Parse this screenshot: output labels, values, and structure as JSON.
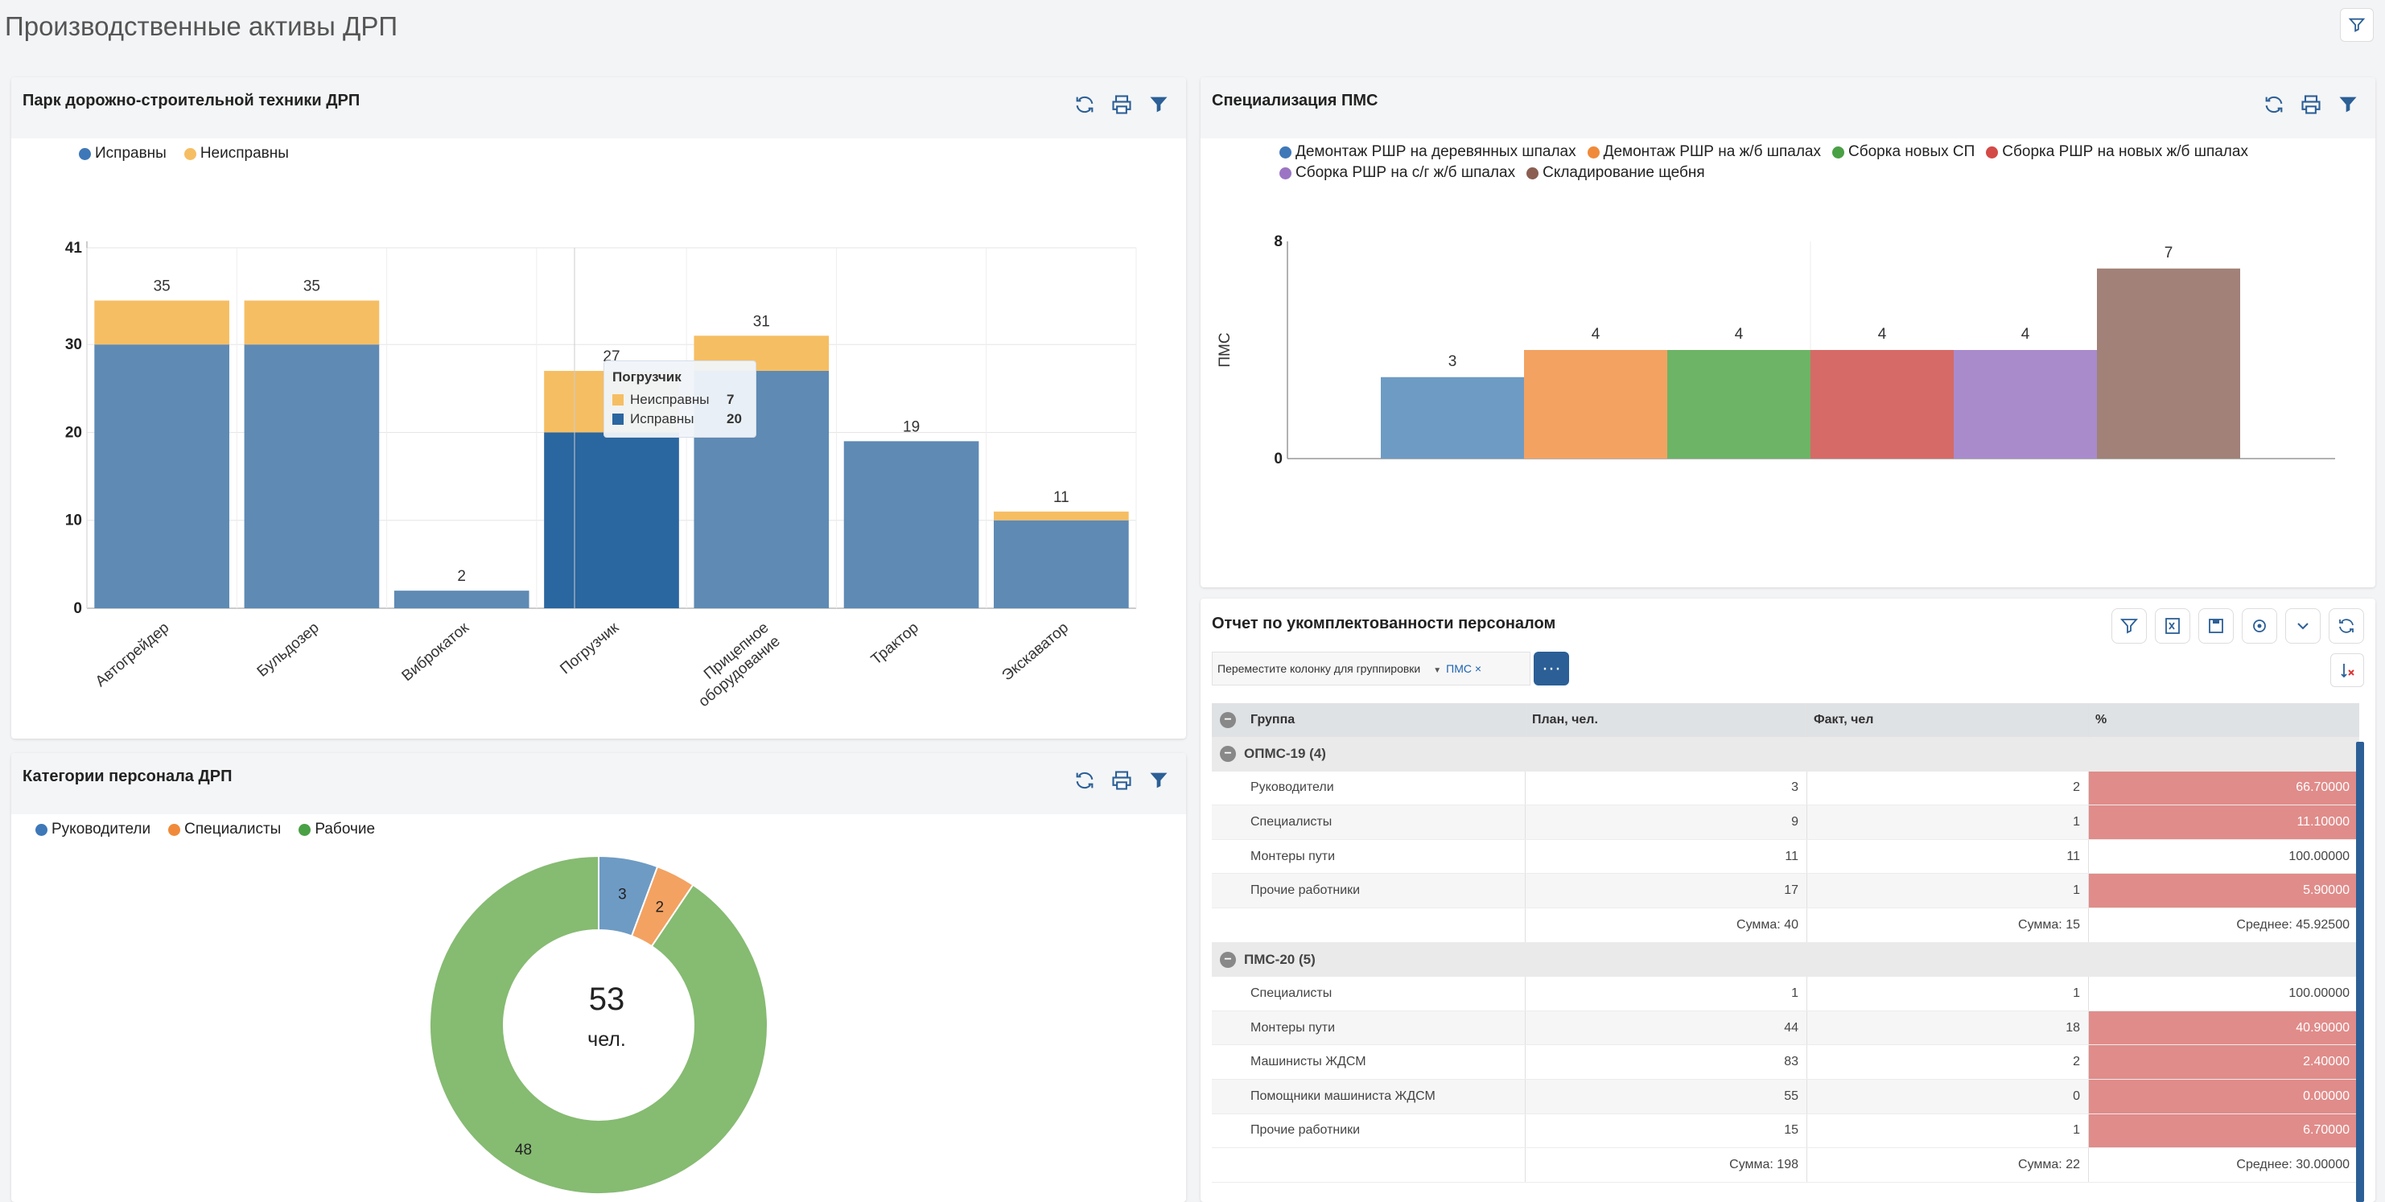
{
  "page": {
    "title": "Производственные активы ДРП"
  },
  "colors": {
    "blue": "#5e8ab4",
    "orange": "#f6be63",
    "dark_blue": "#2a66a0",
    "pink": "#e08c8a",
    "panel_header": "#f4f5f6"
  },
  "fleet": {
    "title": "Парк дорожно-строительной техники ДРП",
    "tools": [
      "refresh-icon",
      "print-icon",
      "filter-icon"
    ],
    "tooltip": {
      "title": "Погрузчик",
      "rows": [
        {
          "label": "Неисправны",
          "value": "7"
        },
        {
          "label": "Исправны",
          "value": "20"
        }
      ]
    }
  },
  "specialization": {
    "title": "Специализация ПМС",
    "tools": [
      "refresh-icon",
      "print-icon",
      "filter-icon"
    ]
  },
  "personnel": {
    "title": "Категории персонала ДРП",
    "tools": [
      "refresh-icon",
      "print-icon",
      "filter-icon"
    ],
    "center_value": "53",
    "center_unit": "чел."
  },
  "report": {
    "title": "Отчет по укомплектованности персоналом",
    "tools": [
      "filter-icon",
      "excel-icon",
      "save-icon",
      "settings-icon",
      "chevron-down-icon",
      "refresh-icon"
    ],
    "group_hint": "Переместите колонку для группировки",
    "group_chip": "ПМС ×",
    "dots_label": "···",
    "columns": [
      "Группа",
      "План, чел.",
      "Факт, чел",
      "%"
    ],
    "groups": [
      {
        "name": "ОПМС-19 (4)",
        "rows": [
          {
            "name": "Руководители",
            "plan": "3",
            "fact": "2",
            "pct": "66.70000",
            "bad": true
          },
          {
            "name": "Специалисты",
            "plan": "9",
            "fact": "1",
            "pct": "11.10000",
            "bad": true
          },
          {
            "name": "Монтеры пути",
            "plan": "11",
            "fact": "11",
            "pct": "100.00000",
            "bad": false
          },
          {
            "name": "Прочие работники",
            "plan": "17",
            "fact": "1",
            "pct": "5.90000",
            "bad": true
          }
        ],
        "summary": {
          "plan": "Сумма: 40",
          "fact": "Сумма: 15",
          "pct": "Среднее: 45.92500"
        }
      },
      {
        "name": "ПМС-20 (5)",
        "rows": [
          {
            "name": "Специалисты",
            "plan": "1",
            "fact": "1",
            "pct": "100.00000",
            "bad": false
          },
          {
            "name": "Монтеры пути",
            "plan": "44",
            "fact": "18",
            "pct": "40.90000",
            "bad": true
          },
          {
            "name": "Машинисты ЖДСМ",
            "plan": "83",
            "fact": "2",
            "pct": "2.40000",
            "bad": true
          },
          {
            "name": "Помощники машиниста ЖДСМ",
            "plan": "55",
            "fact": "0",
            "pct": "0.00000",
            "bad": true
          },
          {
            "name": "Прочие работники",
            "plan": "15",
            "fact": "1",
            "pct": "6.70000",
            "bad": true
          }
        ],
        "summary": {
          "plan": "Сумма: 198",
          "fact": "Сумма: 22",
          "pct": "Среднее: 30.00000"
        }
      }
    ]
  },
  "chart_data": [
    {
      "type": "bar",
      "stacked": true,
      "title": "Парк дорожно-строительной техники ДРП",
      "categories": [
        "Автогрейдер",
        "Бульдозер",
        "Виброкаток",
        "Погрузчик",
        "Прицепное оборудование",
        "Трактор",
        "Экскаватор"
      ],
      "series": [
        {
          "name": "Исправны",
          "values": [
            30,
            30,
            2,
            20,
            27,
            19,
            10
          ],
          "color": "#5e8ab4"
        },
        {
          "name": "Неисправны",
          "values": [
            5,
            5,
            0,
            7,
            4,
            0,
            1
          ],
          "color": "#f6be63"
        }
      ],
      "totals": [
        35,
        35,
        2,
        27,
        31,
        19,
        11
      ],
      "yticks": [
        0,
        10,
        20,
        30,
        41
      ],
      "ylim": [
        0,
        41
      ],
      "legend": "top-left",
      "grid": true
    },
    {
      "type": "bar",
      "title": "Специализация ПМС",
      "ylabel": "ПМС",
      "series": [
        {
          "name": "Демонтаж РШР на деревянных шпалах",
          "values": [
            3
          ],
          "color": "#6e9bc4"
        },
        {
          "name": "Демонтаж РШР на ж/б шпалах",
          "values": [
            4
          ],
          "color": "#f3a262"
        },
        {
          "name": "Сборка новых СП",
          "values": [
            4
          ],
          "color": "#6db466"
        },
        {
          "name": "Сборка РШР на новых ж/б шпалах",
          "values": [
            4
          ],
          "color": "#d66a66"
        },
        {
          "name": "Сборка РШР на с/г ж/б шпалах",
          "values": [
            4
          ],
          "color": "#a98bcb"
        },
        {
          "name": "Складирование щебня",
          "values": [
            7
          ],
          "color": "#a18178"
        }
      ],
      "yticks": [
        0,
        8
      ],
      "ylim": [
        0,
        8
      ],
      "legend": "top",
      "grid": true
    },
    {
      "type": "pie",
      "donut": true,
      "title": "Категории персонала ДРП",
      "labels": [
        "Руководители",
        "Специалисты",
        "Рабочие"
      ],
      "values": [
        3,
        2,
        48
      ],
      "colors": [
        "#6e9bc4",
        "#f3a262",
        "#86bb72"
      ],
      "legend": "top-left"
    }
  ]
}
